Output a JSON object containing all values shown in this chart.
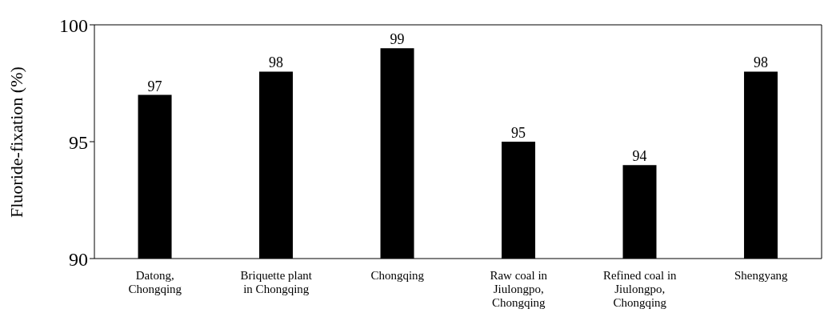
{
  "chart_data": {
    "type": "bar",
    "ylabel": "Fluoride-fixation (%)",
    "categories": [
      "Datong, Chongqing",
      "Briquette plant in Chongqing",
      "Chongqing",
      "Raw coal in Jiulongpo, Chongqing",
      "Refined coal in Jiulongpo, Chongqing",
      "Shengyang"
    ],
    "values": [
      97,
      98,
      99,
      95,
      94,
      98
    ],
    "color": "#000000",
    "ylim": [
      90,
      100
    ],
    "yticks": [
      90,
      95,
      100
    ],
    "data_labels": true
  }
}
